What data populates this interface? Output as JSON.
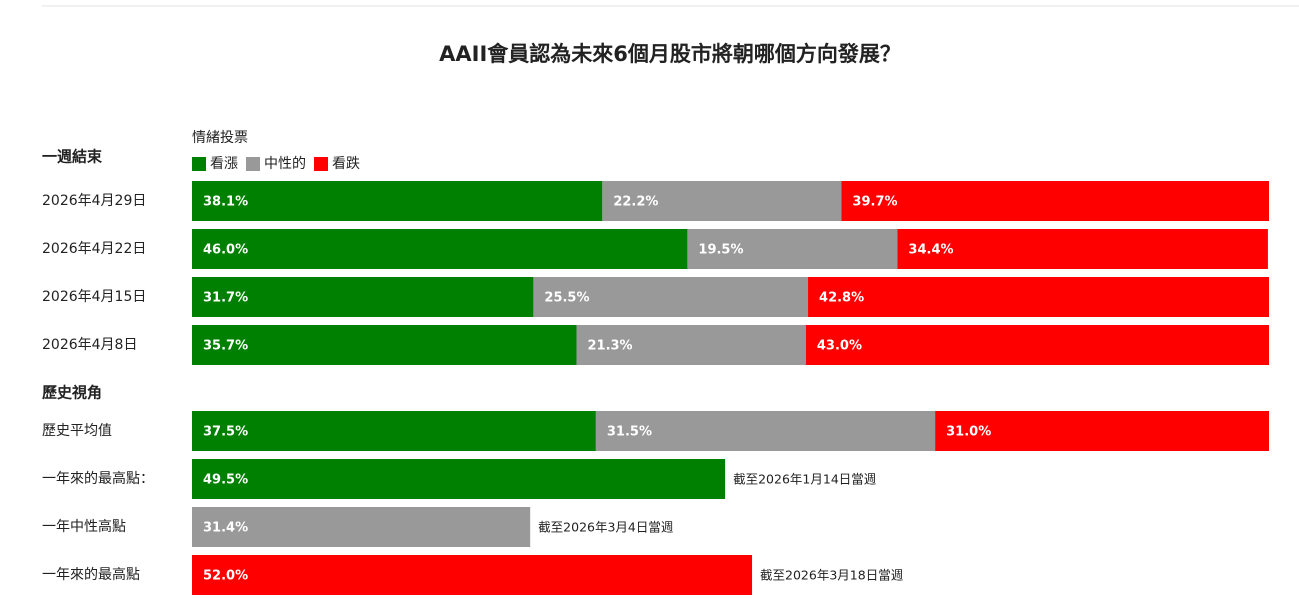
{
  "title": "AAII會員認為未來6個月股市將朝哪個方向發展？",
  "chart_data": [
    {
      "type": "bar",
      "stacked": true,
      "title": "一週結束",
      "legend_title": "情緒投票",
      "categories": [
        "2026年4月29日",
        "2026年4月22日",
        "2026年4月15日",
        "2026年4月8日"
      ],
      "xlim": [
        0,
        100
      ],
      "series": [
        {
          "name": "看漲",
          "color": "#008000",
          "values": [
            38.1,
            46.0,
            31.7,
            35.7
          ],
          "value_labels": [
            "38.1%",
            "46.0%",
            "31.7%",
            "35.7%"
          ]
        },
        {
          "name": "中性的",
          "color": "#999999",
          "values": [
            22.2,
            19.5,
            25.5,
            21.3
          ],
          "value_labels": [
            "22.2%",
            "19.5%",
            "25.5%",
            "21.3%"
          ]
        },
        {
          "name": "看跌",
          "color": "#ff0000",
          "values": [
            39.7,
            34.4,
            42.8,
            43.0
          ],
          "value_labels": [
            "39.7%",
            "34.4%",
            "42.8%",
            "43.0%"
          ]
        }
      ]
    },
    {
      "type": "bar",
      "stacked": true,
      "title": "歷史視角",
      "categories": [
        "歷史平均值",
        "一年來的最高點：",
        "一年中性高點",
        "一年來的最高點"
      ],
      "xlim": [
        0,
        100
      ],
      "notes": [
        null,
        "截至2026年1月14日當週",
        "截至2026年3月4日當週",
        "截至2026年3月18日當週"
      ],
      "series": [
        {
          "color": "#008000",
          "values": [
            37.5,
            49.5,
            null,
            null
          ],
          "value_labels": [
            "37.5%",
            "49.5%",
            null,
            null
          ]
        },
        {
          "color": "#999999",
          "values": [
            31.5,
            null,
            31.4,
            null
          ],
          "value_labels": [
            "31.5%",
            null,
            "31.4%",
            null
          ]
        },
        {
          "color": "#ff0000",
          "values": [
            31.0,
            null,
            null,
            52.0
          ],
          "value_labels": [
            "31.0%",
            null,
            null,
            "52.0%"
          ]
        }
      ]
    }
  ]
}
